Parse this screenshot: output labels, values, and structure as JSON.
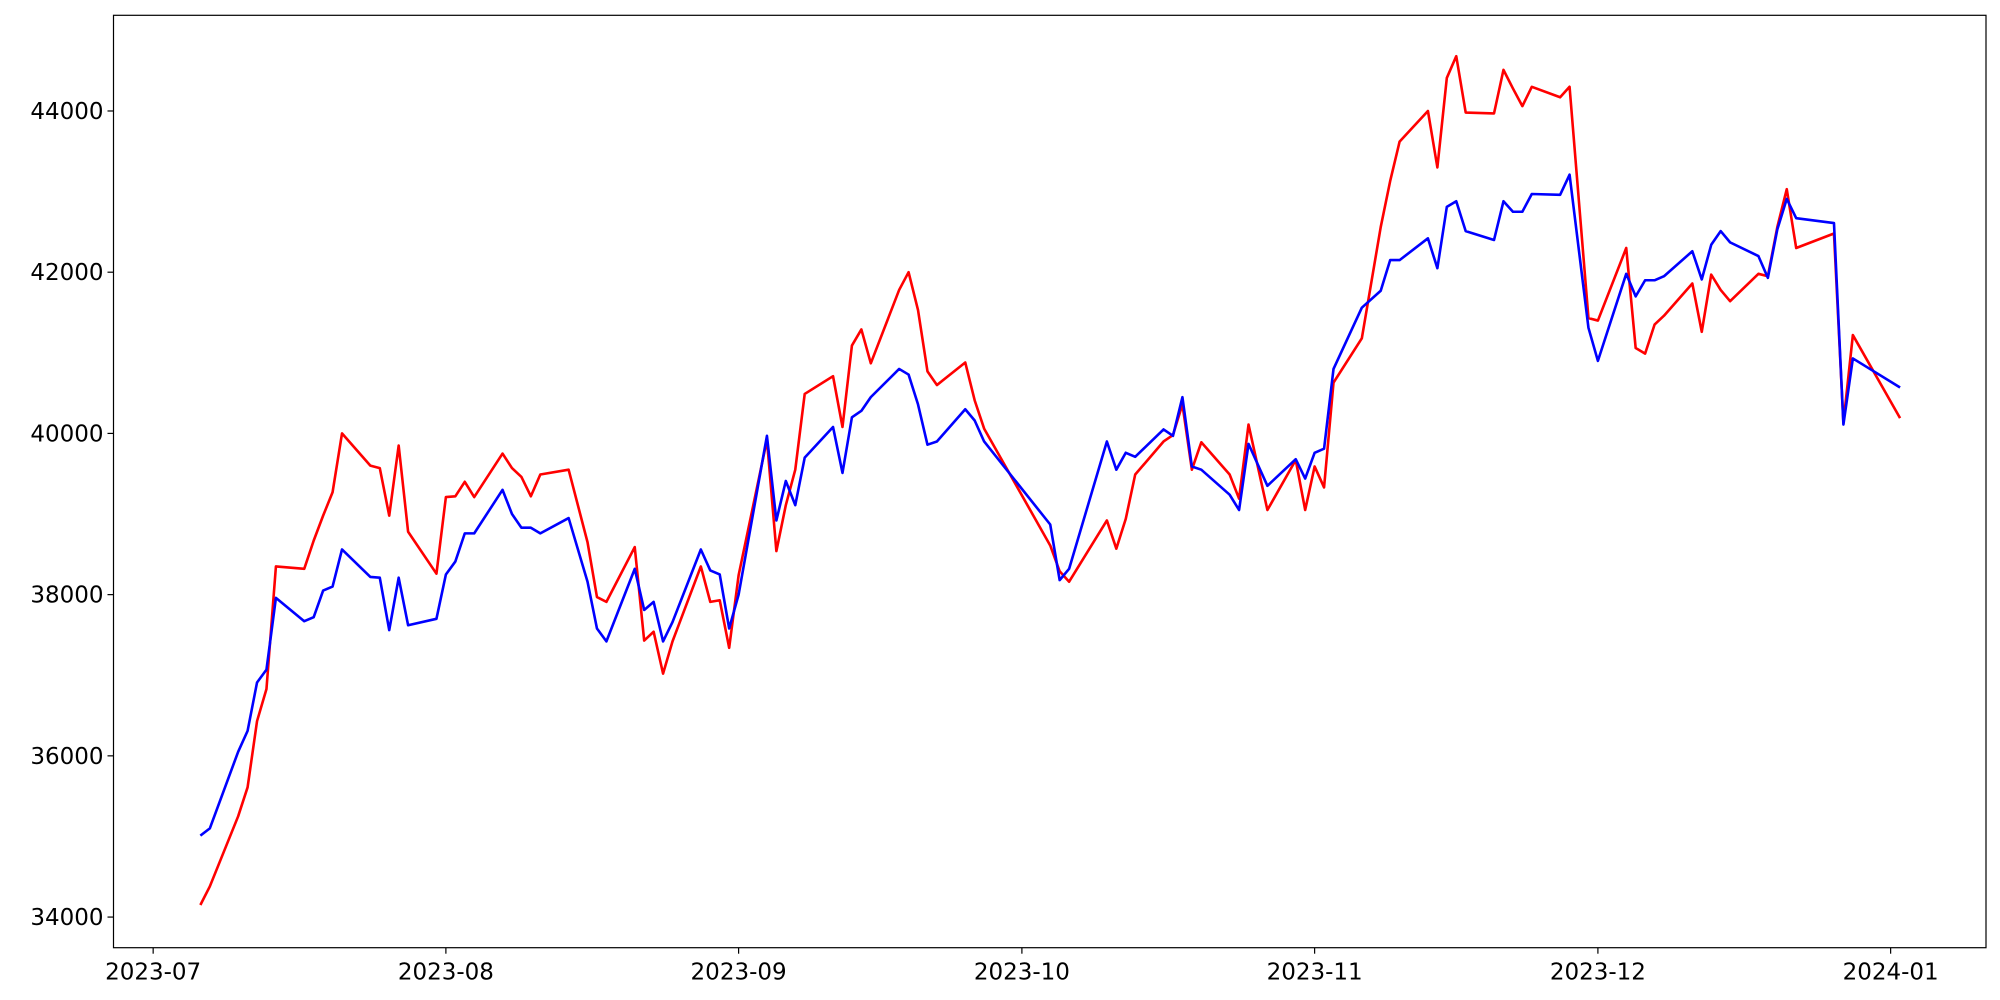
{
  "chart_data": {
    "type": "line",
    "x": [
      5,
      6,
      9,
      10,
      11,
      12,
      13,
      16,
      17,
      18,
      19,
      20,
      23,
      24,
      25,
      26,
      27,
      30,
      31,
      32,
      33,
      34,
      37,
      38,
      39,
      40,
      41,
      44,
      46,
      47,
      48,
      51,
      52,
      53,
      54,
      55,
      58,
      59,
      60,
      61,
      62,
      65,
      66,
      67,
      68,
      69,
      72,
      73,
      74,
      75,
      76,
      79,
      80,
      81,
      82,
      83,
      86,
      87,
      88,
      95,
      96,
      97,
      101,
      102,
      103,
      104,
      107,
      108,
      109,
      110,
      111,
      114,
      115,
      116,
      118,
      121,
      122,
      123,
      124,
      125,
      128,
      130,
      131,
      132,
      135,
      136,
      137,
      138,
      139,
      142,
      143,
      144,
      145,
      146,
      149,
      150,
      152,
      153,
      156,
      157,
      158,
      159,
      160,
      163,
      164,
      165,
      166,
      167,
      170,
      171,
      172,
      173,
      174,
      178,
      179,
      180,
      185
    ],
    "series": [
      {
        "color": "#ff0000",
        "values": [
          34150,
          34380,
          35250,
          35610,
          36430,
          36830,
          38350,
          38320,
          38670,
          38980,
          39270,
          40000,
          39600,
          39570,
          38980,
          39850,
          38780,
          38260,
          39210,
          39220,
          39400,
          39210,
          39750,
          39570,
          39460,
          39220,
          39490,
          39550,
          38650,
          37970,
          37910,
          38590,
          37430,
          37540,
          37020,
          37420,
          38350,
          37910,
          37930,
          37340,
          38240,
          39920,
          38540,
          39110,
          39550,
          40490,
          40710,
          40080,
          41090,
          41290,
          40870,
          41780,
          42000,
          41530,
          40770,
          40600,
          40880,
          40410,
          40060,
          38610,
          38290,
          38160,
          38920,
          38570,
          38940,
          39490,
          39900,
          39980,
          40360,
          39550,
          39890,
          39490,
          39190,
          40110,
          39050,
          39670,
          39050,
          39590,
          39330,
          40630,
          41180,
          42560,
          43130,
          43620,
          44000,
          43300,
          44410,
          44680,
          43980,
          43970,
          44510,
          44280,
          44060,
          44300,
          44170,
          44300,
          41430,
          41400,
          42300,
          41060,
          40990,
          41350,
          41460,
          41860,
          41260,
          41970,
          41780,
          41640,
          41980,
          41950,
          42560,
          43030,
          42300,
          42480,
          40130,
          41220,
          40190
        ]
      },
      {
        "color": "#0000ff",
        "values": [
          35010,
          35100,
          36050,
          36310,
          36910,
          37070,
          37960,
          37670,
          37720,
          38050,
          38100,
          38560,
          38220,
          38210,
          37560,
          38210,
          37620,
          37700,
          38250,
          38410,
          38760,
          38760,
          39300,
          39000,
          38830,
          38830,
          38760,
          38950,
          38160,
          37580,
          37420,
          38320,
          37810,
          37910,
          37420,
          37660,
          38560,
          38300,
          38250,
          37580,
          38000,
          39970,
          38920,
          39410,
          39110,
          39700,
          40080,
          39510,
          40200,
          40280,
          40450,
          40800,
          40730,
          40360,
          39860,
          39900,
          40300,
          40160,
          39900,
          38870,
          38180,
          38320,
          39900,
          39550,
          39760,
          39710,
          40050,
          39970,
          40450,
          39590,
          39550,
          39240,
          39050,
          39870,
          39350,
          39680,
          39440,
          39760,
          39810,
          40800,
          41560,
          41770,
          42150,
          42150,
          42420,
          42050,
          42810,
          42880,
          42510,
          42400,
          42880,
          42750,
          42750,
          42970,
          42960,
          43210,
          41310,
          40900,
          41980,
          41700,
          41900,
          41900,
          41950,
          42260,
          41910,
          42340,
          42510,
          42370,
          42200,
          41930,
          42530,
          42910,
          42670,
          42610,
          40110,
          40930,
          40570
        ]
      }
    ],
    "xlim": [
      -4.2,
      194.1
    ],
    "xticks": [
      {
        "value": 0,
        "label": "2023-07"
      },
      {
        "value": 31,
        "label": "2023-08"
      },
      {
        "value": 62,
        "label": "2023-09"
      },
      {
        "value": 92,
        "label": "2023-10"
      },
      {
        "value": 123,
        "label": "2023-11"
      },
      {
        "value": 153,
        "label": "2023-12"
      },
      {
        "value": 184,
        "label": "2024-01"
      }
    ],
    "ylim": [
      33620,
      45187
    ],
    "yticks": [
      34000,
      36000,
      38000,
      40000,
      42000,
      44000
    ],
    "grid": false
  }
}
